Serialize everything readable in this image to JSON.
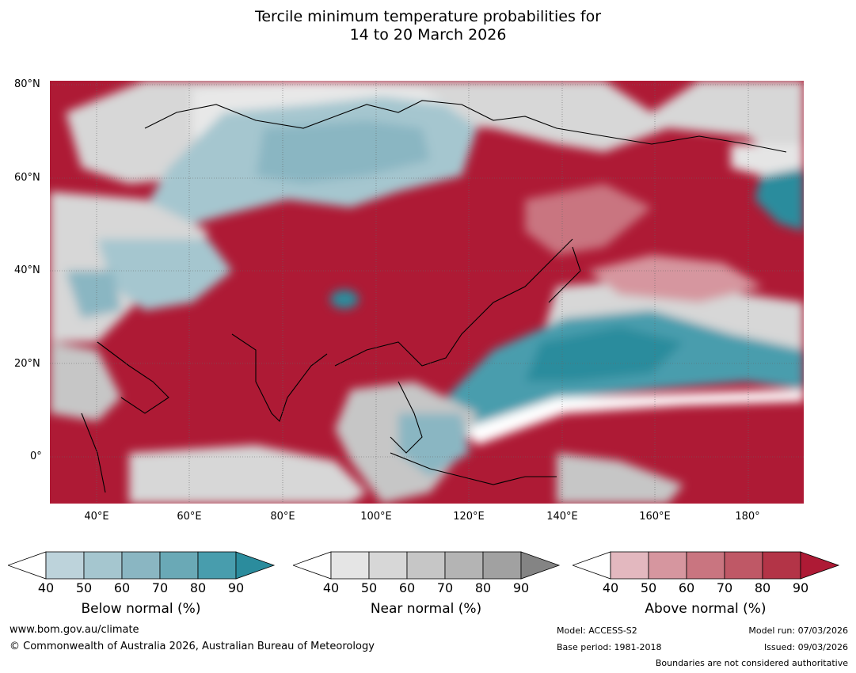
{
  "title_line1": "Tercile minimum temperature probabilities for",
  "title_line2": "14 to 20 March 2026",
  "map": {
    "lat_labels": [
      "80°N",
      "60°N",
      "40°N",
      "20°N",
      "0°"
    ],
    "lon_labels": [
      "40°E",
      "60°E",
      "80°E",
      "100°E",
      "120°E",
      "140°E",
      "160°E",
      "180°"
    ]
  },
  "legends": [
    {
      "name": "below",
      "title": "Below normal (%)",
      "ticks": [
        "40",
        "50",
        "60",
        "70",
        "80",
        "90"
      ],
      "colors": [
        "#bdd3db",
        "#a5c6cf",
        "#8ab6c2",
        "#6aa9b6",
        "#489dad",
        "#2b8c9d"
      ]
    },
    {
      "name": "near",
      "title": "Near normal (%)",
      "ticks": [
        "40",
        "50",
        "60",
        "70",
        "80",
        "90"
      ],
      "colors": [
        "#e5e5e5",
        "#d7d7d7",
        "#c6c6c6",
        "#b4b4b4",
        "#a1a1a1",
        "#848484"
      ]
    },
    {
      "name": "above",
      "title": "Above normal (%)",
      "ticks": [
        "40",
        "50",
        "60",
        "70",
        "80",
        "90"
      ],
      "colors": [
        "#e3b8bf",
        "#d6969f",
        "#c97580",
        "#bf5866",
        "#b33447",
        "#ae1a35"
      ]
    }
  ],
  "footer": {
    "website": "www.bom.gov.au/climate",
    "copyright": "© Commonwealth of Australia 2026, Australian Bureau of Meteorology",
    "model": "Model: ACCESS-S2",
    "base_period": "Base period: 1981-2018",
    "model_run": "Model run: 07/03/2026",
    "issued": "Issued: 09/03/2026",
    "disclaimer": "Boundaries are not considered authoritative"
  },
  "colors": {
    "below_dark": "#2b8c9d",
    "below_light": "#a5c6cf",
    "near_light": "#e5e5e5",
    "near_mid": "#c6c6c6",
    "above_light": "#d6969f",
    "above_dark": "#ae1a35"
  }
}
